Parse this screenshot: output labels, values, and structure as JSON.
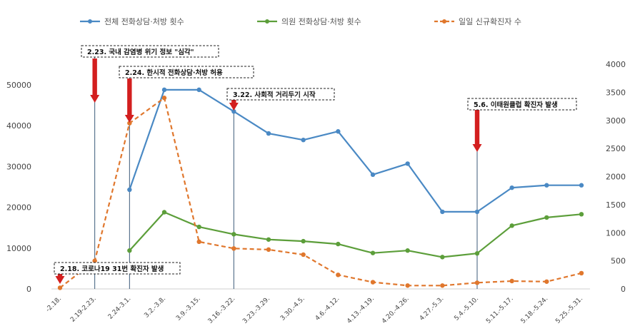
{
  "chart_data": {
    "type": "line",
    "categories": [
      "-2.18.",
      "2.19-2.23.",
      "2.24-3.1.",
      "3.2.-3.8.",
      "3.9.-3.15.",
      "3.16.-3.22.",
      "3.23.-3.29.",
      "3.30.-4.5.",
      "4.6.-4.12.",
      "4.13.-4.19.",
      "4.20.-4.26.",
      "4.27.-5.3.",
      "5.4.-5.10.",
      "5.11.-5.17.",
      "5.18.-5.24.",
      "5.25.-5.31."
    ],
    "series": [
      {
        "name": "전체 전화상담·처방 횟수",
        "axis": "left",
        "color": "#4a89c4",
        "style": "solid",
        "values": [
          null,
          null,
          24300,
          48800,
          48800,
          43500,
          38100,
          36500,
          38600,
          28000,
          30700,
          18900,
          18900,
          24800,
          25400,
          25400
        ]
      },
      {
        "name": "의원 전화상담·처방 횟수",
        "axis": "left",
        "color": "#5c9e3a",
        "style": "solid",
        "values": [
          null,
          null,
          9400,
          18800,
          15200,
          13400,
          12100,
          11700,
          11000,
          8800,
          9400,
          7800,
          8700,
          15500,
          17500,
          18300
        ]
      },
      {
        "name": "일일 신규확진자 수",
        "axis": "right",
        "color": "#e0772d",
        "style": "dashed",
        "values": [
          20,
          500,
          2950,
          3400,
          840,
          720,
          700,
          610,
          250,
          120,
          60,
          60,
          110,
          140,
          130,
          280
        ]
      }
    ],
    "left_axis": {
      "min": 0,
      "max": 50000,
      "ticks": [
        "0",
        "10000",
        "20000",
        "30000",
        "40000",
        "50000"
      ]
    },
    "right_axis": {
      "min": 0,
      "max": 4000,
      "ticks": [
        "0",
        "500",
        "1000",
        "1500",
        "2000",
        "2500",
        "3000",
        "3500",
        "4000"
      ]
    },
    "legend_position": "top",
    "grid": false,
    "annotations": [
      {
        "id": "ann-0218",
        "text": "2.18. 코로나19 31번 확진자 발생",
        "category_index": 0
      },
      {
        "id": "ann-0223",
        "text": "2.23. 국내 감염병 위기 정보 \"심각\"",
        "category_index": 1
      },
      {
        "id": "ann-0224",
        "text": "2.24. 한시적 전화상담·처방 허용",
        "category_index": 2
      },
      {
        "id": "ann-0322",
        "text": "3.22. 사회적 거리두기 시작",
        "category_index": 5
      },
      {
        "id": "ann-0506",
        "text": "5.6. 이태원클럽 확진자 발생",
        "category_index": 12
      }
    ]
  }
}
